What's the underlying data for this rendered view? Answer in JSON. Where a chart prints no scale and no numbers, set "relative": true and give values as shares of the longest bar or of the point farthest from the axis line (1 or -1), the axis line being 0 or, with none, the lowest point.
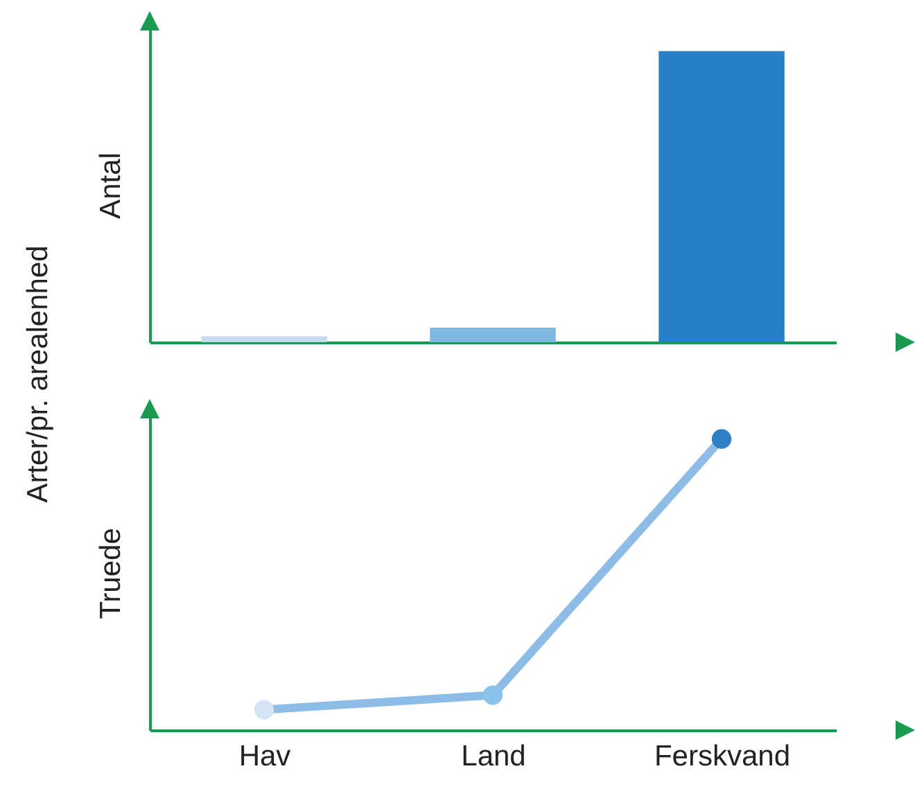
{
  "chart_data": [
    {
      "type": "bar",
      "ylabel": "Antal",
      "annotations": [
        "Arter/pr. arealenhed"
      ],
      "categories": [
        null,
        null,
        null
      ],
      "values": [
        0.02,
        0.05,
        1
      ],
      "colors": [
        "#c5dcee",
        "#80b8e2",
        "#2a80c4"
      ],
      "relative": true
    },
    {
      "type": "line",
      "ylabel": "Truede",
      "categories": [
        "Hav",
        "Land",
        "Ferskvand"
      ],
      "values": [
        0.07,
        0.12,
        1
      ],
      "colors": [
        "#d3e4f4",
        "#8cc3ea",
        "#2f7fc4"
      ],
      "color": "#8dbde6",
      "marker": "circle",
      "relative": true,
      "tick_labels": "x"
    }
  ]
}
